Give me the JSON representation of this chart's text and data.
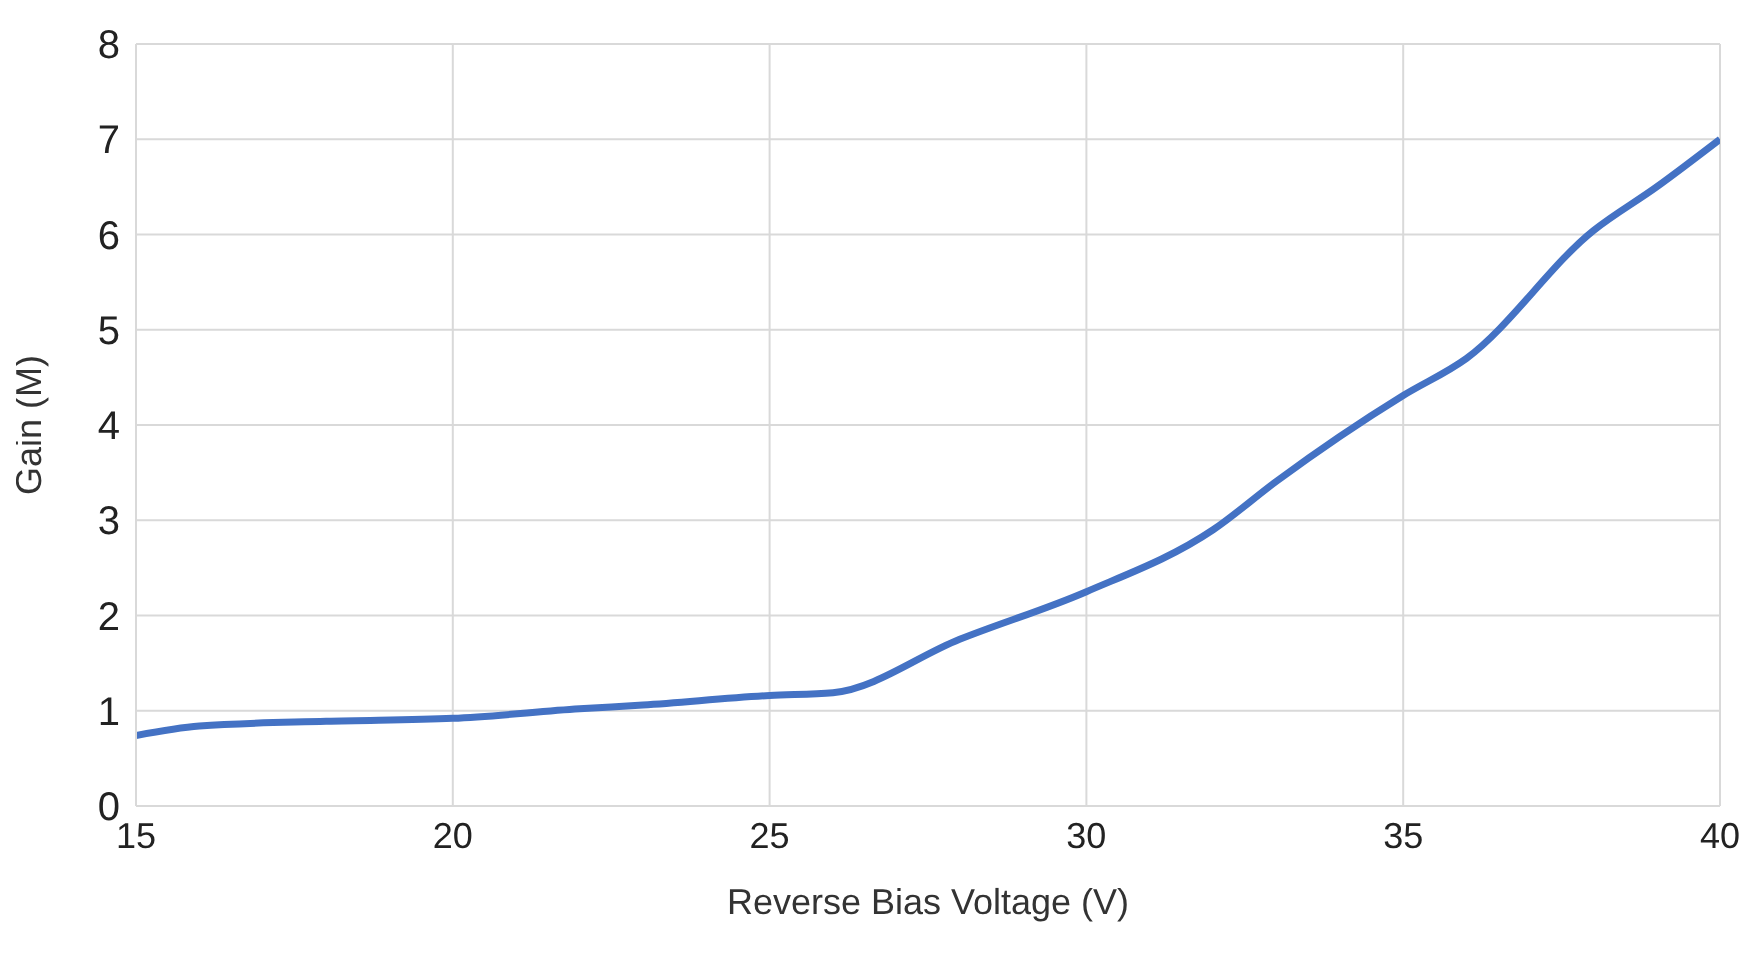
{
  "chart_data": {
    "type": "line",
    "xlabel": "Reverse Bias Voltage (V)",
    "ylabel": "Gain (M)",
    "x": [
      15,
      16,
      18,
      20,
      22,
      23,
      25,
      26,
      28,
      30,
      32,
      33,
      35,
      36,
      38,
      39,
      40
    ],
    "series": [
      {
        "color": "#4472c4",
        "values": [
          0.74,
          0.84,
          0.89,
          0.92,
          1.02,
          1.06,
          1.16,
          1.19,
          1.75,
          2.25,
          2.9,
          3.41,
          4.31,
          4.7,
          6.04,
          6.5,
          7.0
        ]
      }
    ],
    "xlim": [
      15,
      40
    ],
    "xticks": [
      15,
      20,
      25,
      30,
      35,
      40
    ],
    "ylim": [
      0,
      8
    ],
    "yticks": [
      0,
      1,
      2,
      3,
      4,
      5,
      6,
      7,
      8
    ],
    "grid": true,
    "marker": "none",
    "line_style": "solid"
  }
}
